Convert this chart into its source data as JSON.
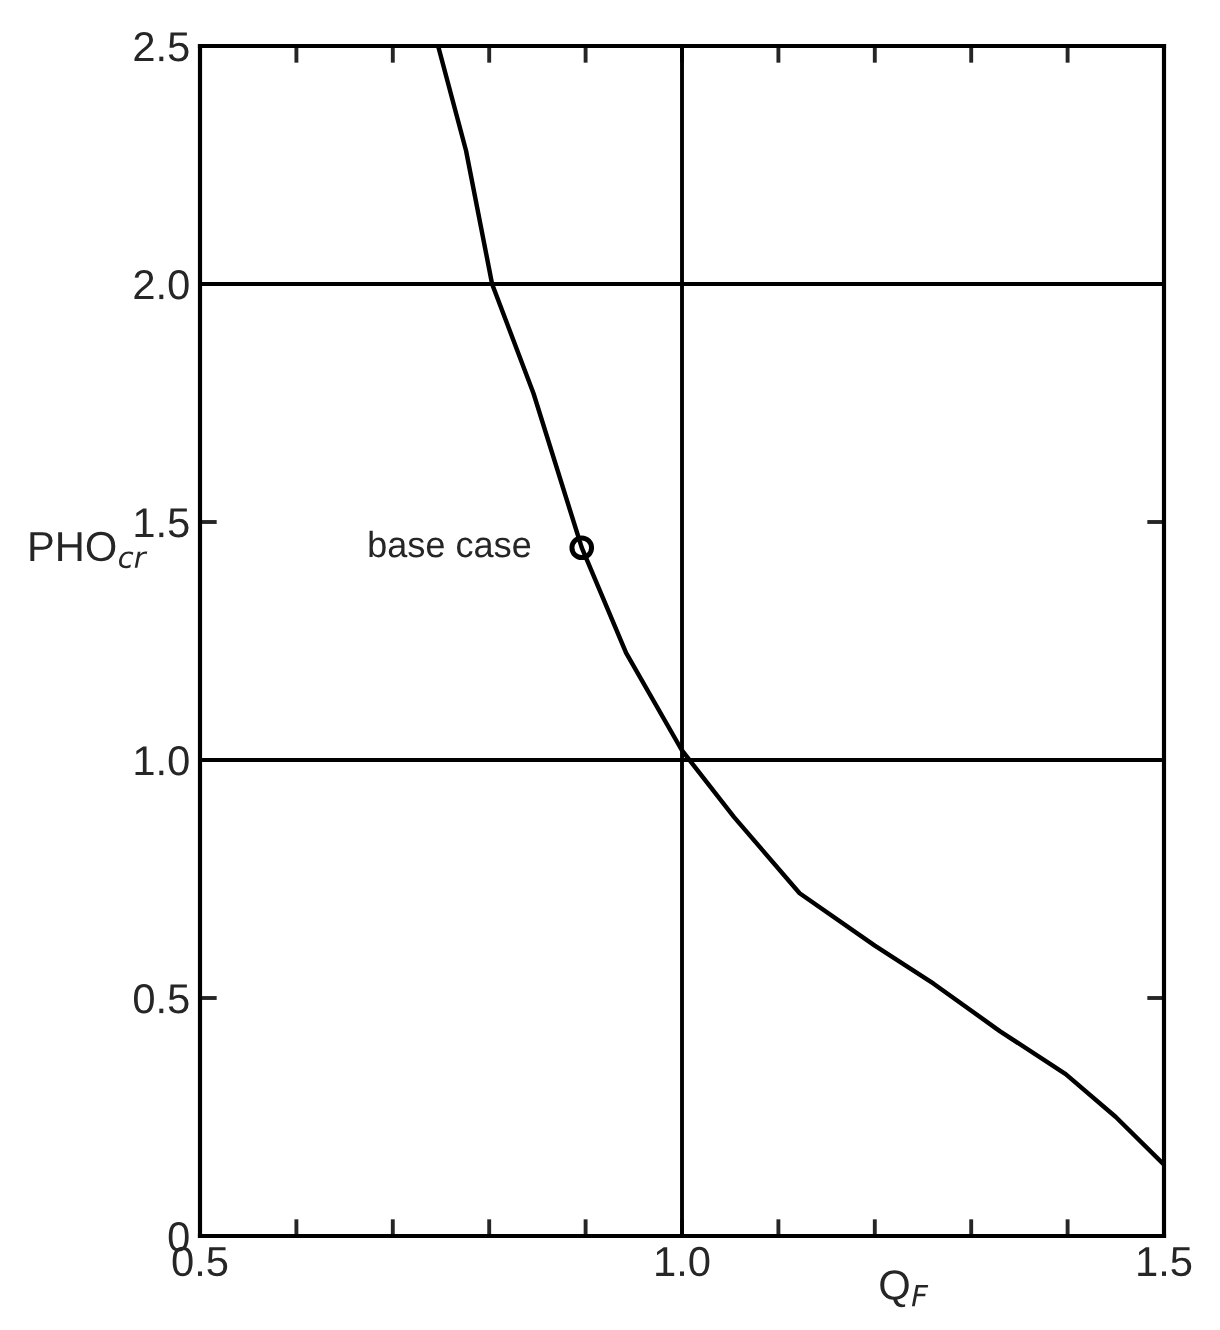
{
  "chart_data": {
    "type": "line",
    "xlabel": "Q$_{F}$",
    "ylabel": "PHO$_{cr}$",
    "series": [
      {
        "color": "#000000",
        "marker": "none",
        "x": [
          0.747,
          0.776,
          0.803,
          0.846,
          0.896,
          0.942,
          1.0,
          1.054,
          1.122,
          1.2,
          1.261,
          1.33,
          1.398,
          1.45,
          1.5
        ],
        "values": [
          2.5,
          2.28,
          2.0,
          1.77,
          1.446,
          1.225,
          1.02,
          0.88,
          0.72,
          0.61,
          0.53,
          0.43,
          0.34,
          0.25,
          0.15
        ]
      },
      {
        "type": "scatter",
        "color": "#000000",
        "marker": "circle",
        "x": [
          0.896
        ],
        "values": [
          1.446
        ]
      }
    ],
    "annotations": [
      {
        "text": "base case",
        "x": 0.896,
        "y": 1.446
      }
    ],
    "ref_lines": [
      {
        "axis": "y",
        "value": 1,
        "color": "#000000"
      },
      {
        "axis": "y",
        "value": 2,
        "color": "#000000"
      },
      {
        "axis": "x",
        "value": 1,
        "color": "#000000"
      }
    ],
    "xlim": [
      0.5,
      1.5
    ],
    "ylim": [
      0,
      2.5
    ],
    "xticks": [
      {
        "value": 0.5,
        "label": "0.5"
      },
      {
        "value": 0.6,
        "label": null
      },
      {
        "value": 0.7,
        "label": null
      },
      {
        "value": 0.8,
        "label": null
      },
      {
        "value": 0.9,
        "label": null
      },
      {
        "value": 1,
        "label": "1.0"
      },
      {
        "value": 1.1,
        "label": null
      },
      {
        "value": 1.2,
        "label": null
      },
      {
        "value": 1.3,
        "label": null
      },
      {
        "value": 1.4,
        "label": null
      },
      {
        "value": 1.5,
        "label": "1.5"
      }
    ],
    "yticks": [
      0,
      0.5,
      {
        "value": 1,
        "label": "1.0"
      },
      1.5,
      {
        "value": 2,
        "label": "2.0"
      },
      2.5
    ],
    "grid": false,
    "legend": false
  }
}
